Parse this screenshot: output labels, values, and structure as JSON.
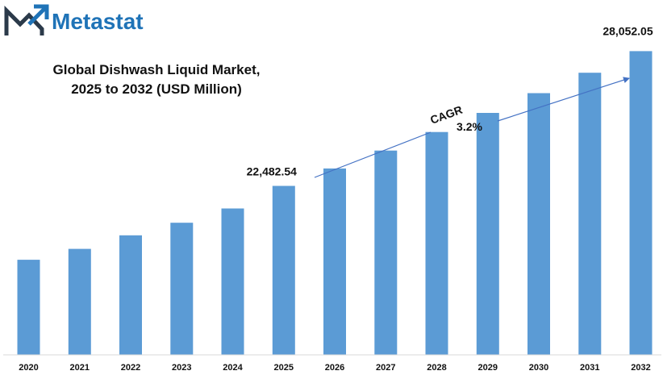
{
  "brand": {
    "name": "Metastat",
    "logo_icon": "m-chart-logo-icon",
    "colors": {
      "logo_dark": "#2b3a4a",
      "logo_blue": "#1f73b7"
    }
  },
  "chart_data": {
    "type": "bar",
    "title": "Global Dishwash Liquid Market,",
    "subtitle": "2025 to 2032 (USD Million)",
    "categories": [
      "2020",
      "2021",
      "2022",
      "2023",
      "2024",
      "2025",
      "2026",
      "2027",
      "2028",
      "2029",
      "2030",
      "2031",
      "2032"
    ],
    "values": [
      19430,
      19880,
      20440,
      20960,
      21550,
      22482.54,
      23202,
      23944,
      24710,
      25501,
      26317,
      27159,
      28052.05
    ],
    "data_labels": [
      {
        "index": 5,
        "text": "22,482.54"
      },
      {
        "index": 12,
        "text": "28,052.05"
      }
    ],
    "annotation": {
      "label": "CAGR",
      "value": "3.2%"
    },
    "xlabel": "",
    "ylabel": "",
    "ylim": [
      15500,
      29500
    ],
    "grid": false,
    "legend": "none",
    "colors": {
      "bar": "#5b9bd5",
      "arrow": "#4472c4",
      "axis": "#d9d9d9"
    }
  }
}
